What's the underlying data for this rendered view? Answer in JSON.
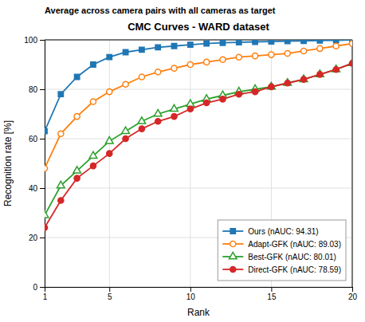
{
  "chart_data": {
    "type": "line",
    "title": "CMC Curves - WARD dataset",
    "subtitle": "Average across camera pairs with all cameras as target",
    "x_label": "Rank",
    "y_label": "Recognition rate [%]",
    "xlim": [
      1,
      20
    ],
    "ylim": [
      0,
      100
    ],
    "xticks": [
      1,
      5,
      10,
      15,
      20
    ],
    "yticks": [
      0,
      20,
      40,
      60,
      80,
      100
    ],
    "grid": true,
    "legend": "lower right",
    "x": [
      1,
      2,
      3,
      4,
      5,
      6,
      7,
      8,
      9,
      10,
      11,
      12,
      13,
      14,
      15,
      16,
      17,
      18,
      19,
      20
    ],
    "series": [
      {
        "name": "Ours (nAUC: 94.31)",
        "marker": "square",
        "values": [
          63,
          78,
          85,
          90,
          93,
          95,
          96,
          97,
          97.5,
          98,
          98.5,
          98.8,
          99,
          99.2,
          99.3,
          99.5,
          99.6,
          99.7,
          99.8,
          100
        ]
      },
      {
        "name": "Adapt-GFK (nAUC: 89.03)",
        "marker": "circle-open",
        "values": [
          48,
          62,
          69,
          75,
          79,
          82,
          85,
          87,
          88.5,
          90,
          91,
          92,
          93,
          93.5,
          94,
          94.5,
          95.5,
          96.5,
          97.5,
          98.5
        ]
      },
      {
        "name": "Best-GFK (nAUC: 80.01)",
        "marker": "triangle-open",
        "values": [
          29,
          41,
          47,
          53,
          59,
          63,
          67,
          70,
          72,
          74,
          76,
          77.5,
          79,
          80,
          81,
          82.5,
          84,
          86,
          88,
          90.5
        ]
      },
      {
        "name": "Direct-GFK (nAUC: 78.59)",
        "marker": "circle",
        "values": [
          24,
          35,
          44,
          49,
          54,
          60,
          64,
          67,
          69,
          72,
          74.5,
          76,
          78,
          79,
          81,
          82.5,
          84,
          86,
          88,
          90.5
        ]
      }
    ]
  }
}
